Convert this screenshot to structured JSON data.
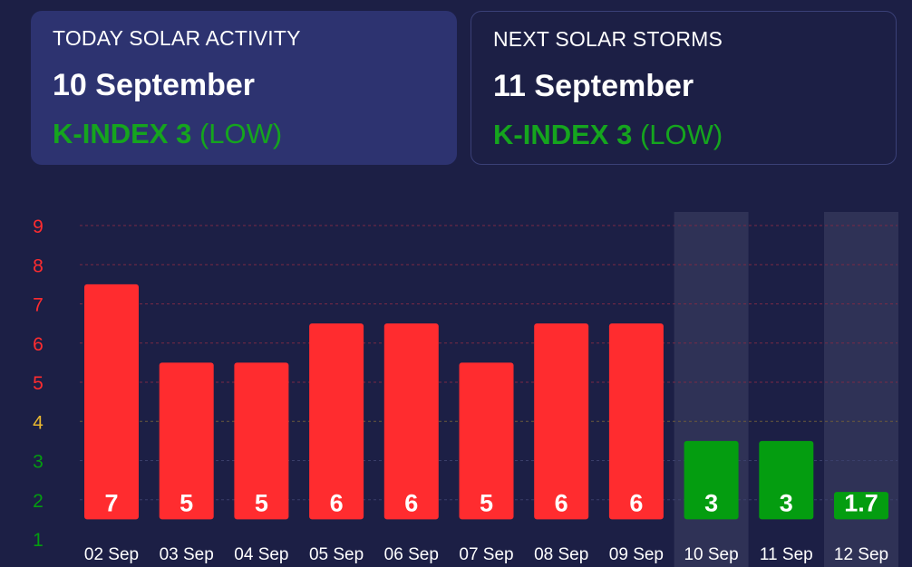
{
  "today": {
    "title": "TODAY SOLAR ACTIVITY",
    "date": "10 September",
    "k_label": "K-INDEX 3",
    "k_level": "(LOW)"
  },
  "next": {
    "title": "NEXT SOLAR STORMS",
    "date": "11 September",
    "k_label": "K-INDEX 3",
    "k_level": "(LOW)"
  },
  "colors": {
    "high": "#ff2c2f",
    "low": "#049d10",
    "moderate_tick": "#e8b730",
    "forecast_band": "#2f3256",
    "gridline_red": "#7a2a45",
    "gridline_neutral": "#3a3f6a"
  },
  "chart_data": {
    "type": "bar",
    "title": "",
    "xlabel": "",
    "ylabel": "",
    "ylim": [
      1,
      9
    ],
    "yticks": [
      "1",
      "2",
      "3",
      "4",
      "5",
      "6",
      "7",
      "8",
      "9"
    ],
    "grid": true,
    "categories": [
      "02 Sep",
      "03 Sep",
      "04 Sep",
      "05 Sep",
      "06 Sep",
      "07 Sep",
      "08 Sep",
      "09 Sep",
      "10 Sep",
      "11 Sep",
      "12 Sep"
    ],
    "values": [
      7,
      5,
      5,
      6,
      6,
      5,
      6,
      6,
      3,
      3,
      1.7
    ],
    "value_labels": [
      "7",
      "5",
      "5",
      "6",
      "6",
      "5",
      "6",
      "6",
      "3",
      "3",
      "1.7"
    ],
    "highlighted_categories": [
      "10 Sep",
      "12 Sep"
    ]
  }
}
